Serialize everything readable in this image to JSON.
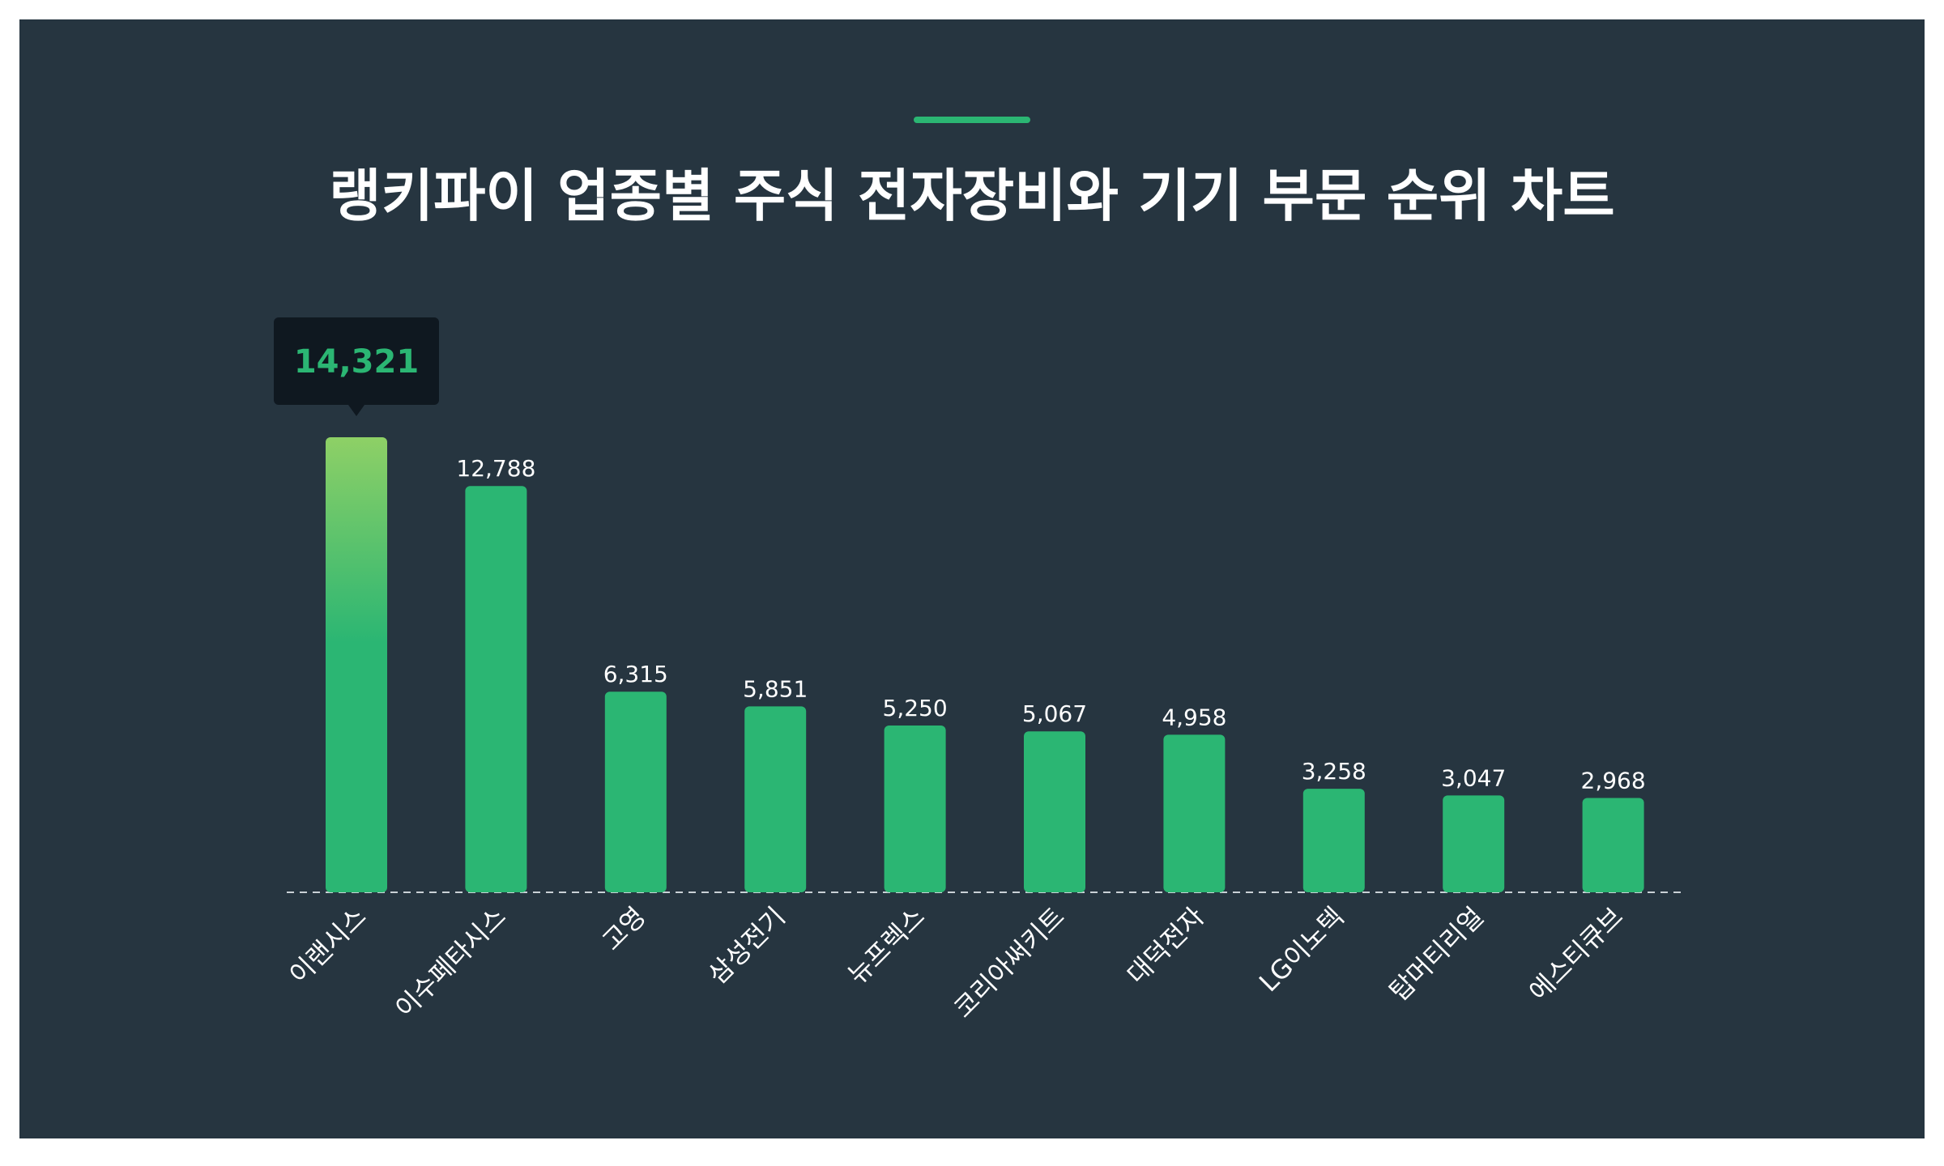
{
  "title": "랭키파이 업종별 주식 전자장비와 기기 부문 순위 차트",
  "colors": {
    "background": "#263540",
    "bar": "#2bb673",
    "bar_top_highlight": "#8ed066",
    "tooltip_bg": "#0f1820",
    "accent": "#2bb673",
    "text": "#ffffff"
  },
  "chart_data": {
    "type": "bar",
    "categories": [
      "이랜시스",
      "이수페타시스",
      "고영",
      "삼성전기",
      "뉴프렉스",
      "코리아써키트",
      "대덕전자",
      "LG이노텍",
      "탑머티리얼",
      "에스티큐브"
    ],
    "values": [
      14321,
      12788,
      6315,
      5851,
      5250,
      5067,
      4958,
      3258,
      3047,
      2968
    ],
    "value_labels": [
      "14,321",
      "12,788",
      "6,315",
      "5,851",
      "5,250",
      "5,067",
      "4,958",
      "3,258",
      "3,047",
      "2,968"
    ],
    "highlight_index": 0,
    "ylim": [
      0,
      14321
    ],
    "grid": false,
    "legend": "none"
  }
}
